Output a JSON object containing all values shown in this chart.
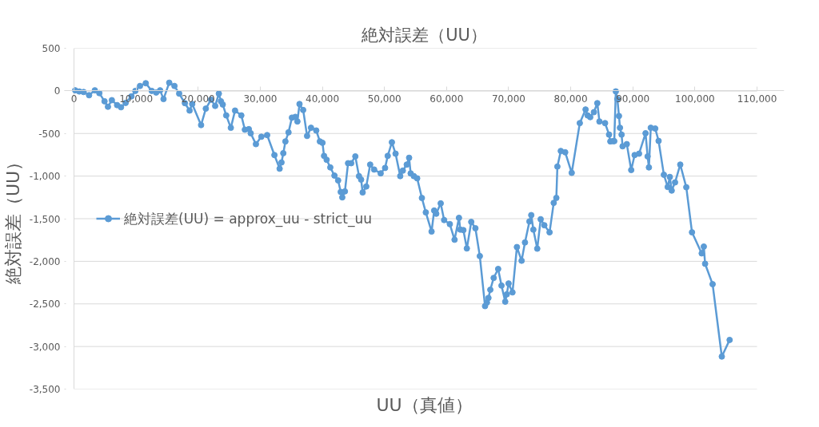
{
  "chart_data": {
    "type": "line",
    "title": "絶対誤差（UU）",
    "xlabel": "UU（真値）",
    "ylabel": "絶対誤差（UU）",
    "xlim": [
      0,
      110000
    ],
    "xticks": [
      {
        "value": 0,
        "label": "0"
      },
      {
        "value": 10000,
        "label": "10,000"
      },
      {
        "value": 20000,
        "label": "20,000"
      },
      {
        "value": 30000,
        "label": "30,000"
      },
      {
        "value": 40000,
        "label": "40,000"
      },
      {
        "value": 50000,
        "label": "50,000"
      },
      {
        "value": 60000,
        "label": "60,000"
      },
      {
        "value": 70000,
        "label": "70,000"
      },
      {
        "value": 80000,
        "label": "80,000"
      },
      {
        "value": 90000,
        "label": "90,000"
      },
      {
        "value": 100000,
        "label": "100,000"
      },
      {
        "value": 110000,
        "label": "110,000"
      }
    ],
    "ylim": [
      -3500,
      500
    ],
    "yticks": [
      500,
      0,
      {
        "value": -500,
        "label": "-500"
      },
      {
        "value": -1000,
        "label": "-1,000"
      },
      {
        "value": -1500,
        "label": "-1,500"
      },
      {
        "value": -2000,
        "label": "-2,000"
      },
      {
        "value": -2500,
        "label": "-2,500"
      },
      {
        "value": -3000,
        "label": "-3,000"
      },
      {
        "value": -3500,
        "label": "-3,500"
      }
    ],
    "grid": "y",
    "legend": "left",
    "marker": "circle",
    "line_style": "solid",
    "series": [
      {
        "name": "絶対誤差(UU) = approx_uu - strict_uu",
        "color": "#5b9bd5",
        "x": [
          200,
          850,
          1550,
          2430,
          3360,
          4080,
          4920,
          5470,
          6100,
          6940,
          7570,
          8320,
          9250,
          9880,
          10630,
          11560,
          12520,
          13240,
          13870,
          14420,
          15340,
          16180,
          16940,
          17860,
          18620,
          19040,
          20470,
          21230,
          22070,
          22740,
          23330,
          23670,
          23960,
          24520,
          25260,
          25940,
          26950,
          27520,
          28160,
          28460,
          29300,
          30180,
          31110,
          32280,
          33120,
          33420,
          33710,
          34050,
          34550,
          35100,
          35650,
          35980,
          36320,
          36910,
          37540,
          38170,
          39010,
          39600,
          40020,
          40270,
          40690,
          41280,
          41950,
          42540,
          42960,
          43210,
          43630,
          44140,
          44640,
          45310,
          45900,
          46240,
          46490,
          47070,
          47700,
          48340,
          49390,
          50100,
          50530,
          51200,
          51790,
          52540,
          52960,
          53590,
          53970,
          54220,
          54730,
          55270,
          56030,
          56660,
          57590,
          58010,
          58340,
          59060,
          59610,
          60530,
          61290,
          62000,
          62210,
          62710,
          63270,
          63980,
          64650,
          65360,
          66200,
          66500,
          66750,
          67050,
          67590,
          68310,
          68850,
          69450,
          69700,
          69990,
          70620,
          71330,
          72090,
          72630,
          73350,
          73640,
          73980,
          74610,
          75160,
          75750,
          76590,
          77260,
          77680,
          77850,
          78400,
          79110,
          80160,
          81460,
          82390,
          82720,
          83140,
          83730,
          84280,
          84620,
          85530,
          86170,
          86380,
          86800,
          87010,
          87260,
          87510,
          87770,
          87930,
          88190,
          88350,
          89030,
          89740,
          90290,
          91000,
          92050,
          92380,
          92590,
          92890,
          93610,
          94150,
          95000,
          95620,
          95960,
          96260,
          96800,
          97640,
          98610,
          99530,
          101090,
          101430,
          101640,
          102850,
          104330,
          105590
        ],
        "values": [
          7,
          -7,
          -13,
          -51,
          7,
          -26,
          -122,
          -186,
          -109,
          -167,
          -192,
          -141,
          -64,
          0,
          58,
          90,
          0,
          -19,
          7,
          -96,
          96,
          58,
          -32,
          -144,
          -231,
          -154,
          -401,
          -208,
          -103,
          -176,
          -32,
          -122,
          -160,
          -288,
          -433,
          -231,
          -288,
          -455,
          -449,
          -497,
          -625,
          -538,
          -519,
          -753,
          -913,
          -840,
          -731,
          -593,
          -487,
          -314,
          -305,
          -359,
          -154,
          -224,
          -529,
          -433,
          -465,
          -593,
          -609,
          -763,
          -808,
          -898,
          -994,
          -1051,
          -1186,
          -1250,
          -1180,
          -849,
          -849,
          -769,
          -1000,
          -1041,
          -1192,
          -1122,
          -865,
          -923,
          -968,
          -904,
          -763,
          -603,
          -737,
          -1000,
          -936,
          -865,
          -785,
          -968,
          -1000,
          -1026,
          -1257,
          -1426,
          -1651,
          -1404,
          -1442,
          -1320,
          -1516,
          -1564,
          -1747,
          -1490,
          -1628,
          -1634,
          -1849,
          -1538,
          -1612,
          -1939,
          -2526,
          -2484,
          -2430,
          -2334,
          -2195,
          -2090,
          -2285,
          -2474,
          -2388,
          -2260,
          -2365,
          -1833,
          -1993,
          -1779,
          -1532,
          -1458,
          -1628,
          -1852,
          -1506,
          -1577,
          -1660,
          -1314,
          -1256,
          -888,
          -705,
          -721,
          -962,
          -378,
          -218,
          -288,
          -308,
          -250,
          -144,
          -359,
          -378,
          -513,
          -593,
          -590,
          -590,
          -6,
          -96,
          -295,
          -433,
          -513,
          -650,
          -625,
          -929,
          -753,
          -737,
          -497,
          -769,
          -898,
          -433,
          -442,
          -587,
          -984,
          -1128,
          -1010,
          -1170,
          -1074,
          -865,
          -1131,
          -1660,
          -1907,
          -1827,
          -2029,
          -2269,
          -3118,
          -2923
        ]
      }
    ]
  }
}
